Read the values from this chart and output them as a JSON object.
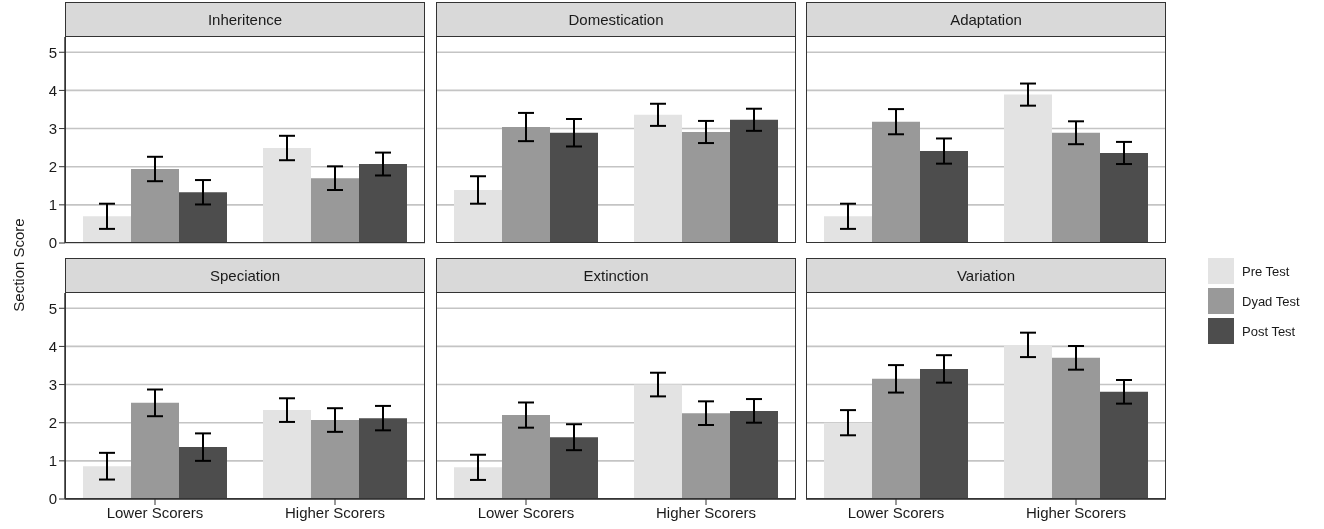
{
  "chart_data": [
    {
      "type": "bar",
      "title": "Inheritence",
      "ylabel": "Section Score",
      "categories": [
        "Lower Scorers",
        "Higher Scorers"
      ],
      "ylim": [
        0,
        5.4
      ],
      "yticks": [
        0,
        1,
        2,
        3,
        4,
        5
      ],
      "grid": "y",
      "legend": "right",
      "tick_labels": "y",
      "series": [
        {
          "name": "Pre Test",
          "color": "#e3e3e3",
          "values": [
            0.7,
            2.49
          ],
          "errors": [
            0.33,
            0.32
          ]
        },
        {
          "name": "Dyad Test",
          "color": "#999999",
          "values": [
            1.94,
            1.7
          ],
          "errors": [
            0.32,
            0.31
          ]
        },
        {
          "name": "Post Test",
          "color": "#4d4d4d",
          "values": [
            1.33,
            2.07
          ],
          "errors": [
            0.32,
            0.3
          ]
        }
      ]
    },
    {
      "type": "bar",
      "title": "Domestication",
      "categories": [
        "Lower Scorers",
        "Higher Scorers"
      ],
      "ylim": [
        0,
        5.4
      ],
      "yticks": [
        0,
        1,
        2,
        3,
        4,
        5
      ],
      "grid": "y",
      "tick_labels": false,
      "series": [
        {
          "color": "#e3e3e3",
          "values": [
            1.39,
            3.36
          ],
          "errors": [
            0.36,
            0.29
          ]
        },
        {
          "color": "#999999",
          "values": [
            3.04,
            2.91
          ],
          "errors": [
            0.37,
            0.29
          ]
        },
        {
          "color": "#4d4d4d",
          "values": [
            2.89,
            3.23
          ],
          "errors": [
            0.36,
            0.29
          ]
        }
      ]
    },
    {
      "type": "bar",
      "title": "Adaptation",
      "categories": [
        "Lower Scorers",
        "Higher Scorers"
      ],
      "ylim": [
        0,
        5.4
      ],
      "yticks": [
        0,
        1,
        2,
        3,
        4,
        5
      ],
      "grid": "y",
      "tick_labels": false,
      "series": [
        {
          "color": "#e3e3e3",
          "values": [
            0.7,
            3.89
          ],
          "errors": [
            0.33,
            0.29
          ]
        },
        {
          "color": "#999999",
          "values": [
            3.18,
            2.89
          ],
          "errors": [
            0.33,
            0.3
          ]
        },
        {
          "color": "#4d4d4d",
          "values": [
            2.41,
            2.36
          ],
          "errors": [
            0.33,
            0.29
          ]
        }
      ]
    },
    {
      "type": "bar",
      "title": "Speciation",
      "categories": [
        "Lower Scorers",
        "Higher Scorers"
      ],
      "ylim": [
        0,
        5.4
      ],
      "yticks": [
        0,
        1,
        2,
        3,
        4,
        5
      ],
      "grid": "y",
      "series": [
        {
          "color": "#e3e3e3",
          "values": [
            0.86,
            2.33
          ],
          "errors": [
            0.35,
            0.31
          ]
        },
        {
          "color": "#999999",
          "values": [
            2.52,
            2.07
          ],
          "errors": [
            0.35,
            0.31
          ]
        },
        {
          "color": "#4d4d4d",
          "values": [
            1.36,
            2.12
          ],
          "errors": [
            0.36,
            0.32
          ]
        }
      ]
    },
    {
      "type": "bar",
      "title": "Extinction",
      "categories": [
        "Lower Scorers",
        "Higher Scorers"
      ],
      "ylim": [
        0,
        5.4
      ],
      "yticks": [
        0,
        1,
        2,
        3,
        4,
        5
      ],
      "grid": "y",
      "tick_labels": "x",
      "series": [
        {
          "color": "#e3e3e3",
          "values": [
            0.83,
            3.0
          ],
          "errors": [
            0.33,
            0.31
          ]
        },
        {
          "color": "#999999",
          "values": [
            2.2,
            2.25
          ],
          "errors": [
            0.33,
            0.31
          ]
        },
        {
          "color": "#4d4d4d",
          "values": [
            1.62,
            2.31
          ],
          "errors": [
            0.34,
            0.31
          ]
        }
      ]
    },
    {
      "type": "bar",
      "title": "Variation",
      "categories": [
        "Lower Scorers",
        "Higher Scorers"
      ],
      "ylim": [
        0,
        5.4
      ],
      "yticks": [
        0,
        1,
        2,
        3,
        4,
        5
      ],
      "grid": "y",
      "tick_labels": "x",
      "series": [
        {
          "color": "#e3e3e3",
          "values": [
            2.0,
            4.04
          ],
          "errors": [
            0.33,
            0.32
          ]
        },
        {
          "color": "#999999",
          "values": [
            3.15,
            3.7
          ],
          "errors": [
            0.36,
            0.31
          ]
        },
        {
          "color": "#4d4d4d",
          "values": [
            3.41,
            2.81
          ],
          "errors": [
            0.36,
            0.31
          ]
        }
      ]
    }
  ]
}
